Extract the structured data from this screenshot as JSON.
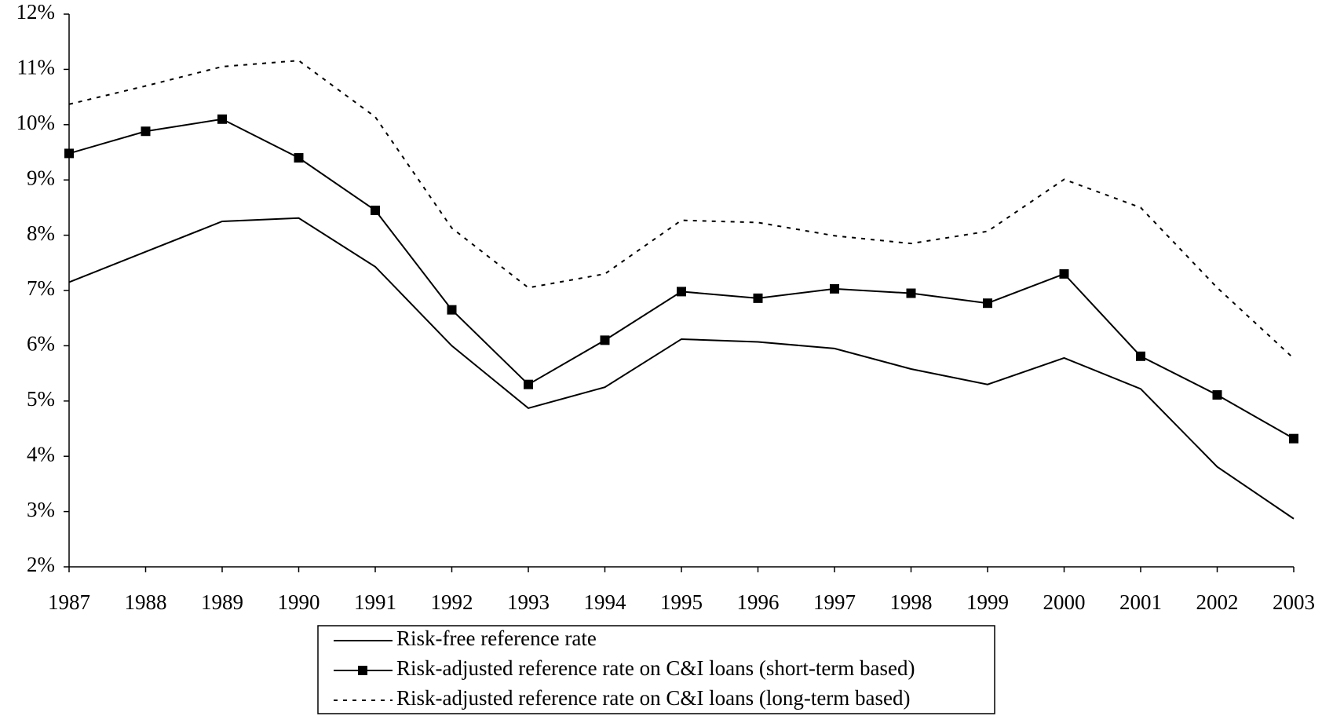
{
  "chart_data": {
    "type": "line",
    "categories": [
      "1987",
      "1988",
      "1989",
      "1990",
      "1991",
      "1992",
      "1993",
      "1994",
      "1995",
      "1996",
      "1997",
      "1998",
      "1999",
      "2000",
      "2001",
      "2002",
      "2003"
    ],
    "series": [
      {
        "name": "Risk-free reference rate",
        "color": "#000000",
        "style": "solid",
        "marker": false,
        "values": [
          7.15,
          7.7,
          8.25,
          8.31,
          7.43,
          6.0,
          4.87,
          5.25,
          6.12,
          6.07,
          5.95,
          5.58,
          5.3,
          5.78,
          5.22,
          3.81,
          2.87
        ]
      },
      {
        "name": "Risk-adjusted reference rate on C&I loans (short-term based)",
        "color": "#000000",
        "style": "solid",
        "marker": true,
        "values": [
          9.48,
          9.88,
          10.1,
          9.4,
          8.45,
          6.65,
          5.3,
          6.1,
          6.98,
          6.86,
          7.03,
          6.95,
          6.77,
          7.3,
          5.81,
          5.11,
          4.32
        ]
      },
      {
        "name": "Risk-adjusted reference rate on C&I loans (long-term based)",
        "color": "#000000",
        "style": "dotted",
        "marker": false,
        "values": [
          10.37,
          10.7,
          11.05,
          11.16,
          10.14,
          8.13,
          7.05,
          7.3,
          8.27,
          8.23,
          7.99,
          7.85,
          8.07,
          9.01,
          8.5,
          7.05,
          5.77
        ]
      }
    ],
    "ylim": [
      2,
      12
    ],
    "yticks": [
      {
        "value": 2,
        "label": "2%"
      },
      {
        "value": 3,
        "label": "3%"
      },
      {
        "value": 4,
        "label": "4%"
      },
      {
        "value": 5,
        "label": "5%"
      },
      {
        "value": 6,
        "label": "6%"
      },
      {
        "value": 7,
        "label": "7%"
      },
      {
        "value": 8,
        "label": "8%"
      },
      {
        "value": 9,
        "label": "9%"
      },
      {
        "value": 10,
        "label": "10%"
      },
      {
        "value": 11,
        "label": "11%"
      },
      {
        "value": 12,
        "label": "12%"
      }
    ],
    "legend": "bottom"
  }
}
